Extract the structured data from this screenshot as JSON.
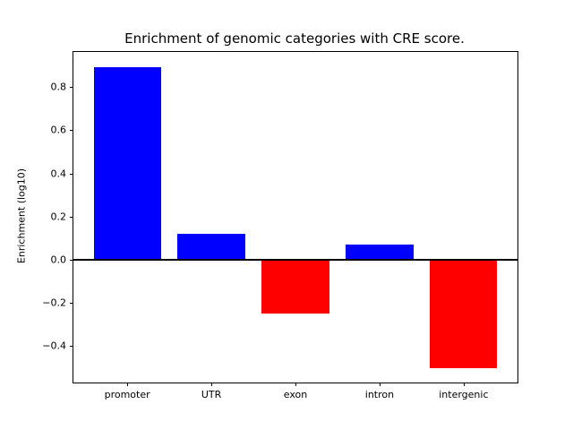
{
  "figure": {
    "background_color": "#ffffff",
    "spine_color": "#000000",
    "zero_line_color": "#000000"
  },
  "chart_data": {
    "type": "bar",
    "title": "Enrichment of genomic categories with CRE score.",
    "xlabel": "",
    "ylabel": "Enrichment (log10)",
    "categories": [
      "promoter",
      "UTR",
      "exon",
      "intron",
      "intergenic"
    ],
    "values": [
      0.89,
      0.12,
      -0.25,
      0.07,
      -0.5
    ],
    "bar_width": 0.8,
    "positive_color": "#0000ff",
    "negative_color": "#ff0000",
    "xlim": [
      -0.64,
      4.64
    ],
    "ylim": [
      -0.568,
      0.962
    ],
    "yticks": [
      0.8,
      0.6,
      0.4,
      0.2,
      0.0,
      -0.2,
      -0.4
    ],
    "ytick_labels": [
      "0.8",
      "0.6",
      "0.4",
      "0.2",
      "0.0",
      "−0.2",
      "−0.4"
    ],
    "zero_line": true,
    "grid": false,
    "legend_position": "none"
  }
}
